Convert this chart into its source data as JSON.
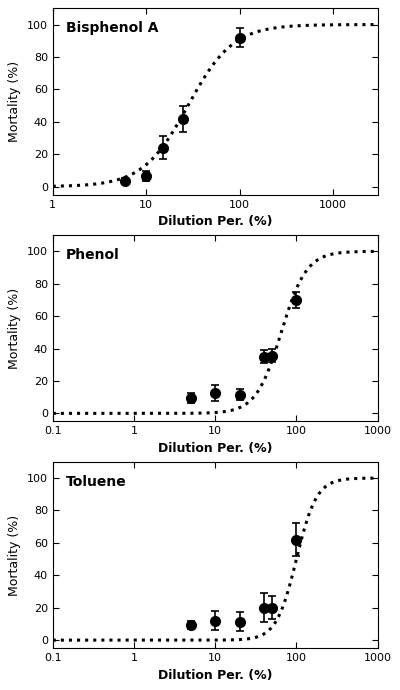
{
  "panels": [
    {
      "title": "Bisphenol A",
      "xlim": [
        1,
        3000
      ],
      "ylim": [
        -5,
        110
      ],
      "x_data": [
        6,
        10,
        15,
        25,
        100
      ],
      "y_data": [
        3.5,
        6.5,
        24.0,
        41.5,
        92.0
      ],
      "y_err": [
        2.0,
        3.0,
        7.0,
        8.0,
        6.0
      ],
      "curve_params": {
        "LC50": 28,
        "n": 1.8
      },
      "xticks": [
        1,
        10,
        100,
        1000
      ],
      "xtick_labels": [
        "1",
        "10",
        "100",
        "1000"
      ]
    },
    {
      "title": "Phenol",
      "xlim": [
        0.1,
        1000
      ],
      "ylim": [
        -5,
        110
      ],
      "x_data": [
        5,
        10,
        20,
        40,
        50,
        100
      ],
      "y_data": [
        9.5,
        12.5,
        11.5,
        35.0,
        35.5,
        70.0
      ],
      "y_err": [
        3.0,
        5.0,
        3.5,
        4.0,
        4.0,
        5.0
      ],
      "curve_params": {
        "LC50": 65,
        "n": 2.8
      },
      "xticks": [
        0.1,
        1,
        10,
        100,
        1000
      ],
      "xtick_labels": [
        "0.1",
        "1",
        "10",
        "100",
        "1000"
      ]
    },
    {
      "title": "Toluene",
      "xlim": [
        0.1,
        1000
      ],
      "ylim": [
        -5,
        110
      ],
      "x_data": [
        5,
        10,
        20,
        40,
        50,
        100
      ],
      "y_data": [
        9.5,
        12.0,
        11.5,
        20.0,
        20.0,
        62.0
      ],
      "y_err": [
        2.5,
        6.0,
        6.0,
        9.0,
        7.0,
        10.0
      ],
      "curve_params": {
        "LC50": 100,
        "n": 3.5
      },
      "xticks": [
        0.1,
        1,
        10,
        100,
        1000
      ],
      "xtick_labels": [
        "0.1",
        "1",
        "10",
        "100",
        "1000"
      ]
    }
  ],
  "ylabel": "Mortality (%)",
  "xlabel": "Dilution Per. (%)",
  "yticks": [
    0,
    20,
    40,
    60,
    80,
    100
  ],
  "marker_color": "#000000",
  "marker_size": 7,
  "line_color": "#000000",
  "line_style": "dotted",
  "line_width": 2.2,
  "background_color": "#ffffff",
  "title_fontsize": 10,
  "label_fontsize": 9,
  "tick_fontsize": 8,
  "xlabel_fontweight": "bold"
}
